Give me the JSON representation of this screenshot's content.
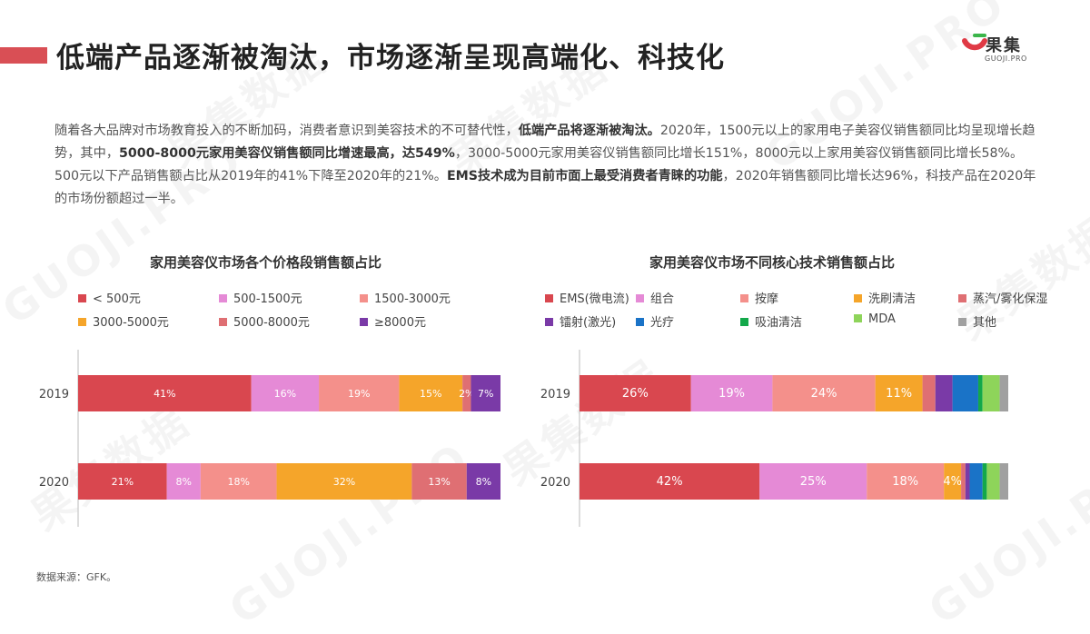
{
  "header": {
    "title": "低端产品逐渐被淘汰，市场逐渐呈现高端化、科技化",
    "logo_name": "果集",
    "logo_sub": "GUOJI.PRO"
  },
  "body_text": {
    "p1": "随着各大品牌对市场教育投入的不断加码，消费者意识到美容技术的不可替代性，",
    "p1b": "低端产品将逐渐被淘汰。",
    "p2": "2020年，1500元以上的家用电子美容仪销售额同比均呈现增长趋势，其中，",
    "p2b": "5000-8000元家用美容仪销售额同比增速最高，达549%",
    "p3": "，3000-5000元家用美容仪销售额同比增长151%，8000元以上家用美容仪销售额同比增长58%。500元以下产品销售额占比从2019年的41%下降至2020年的21%。",
    "p3b": "EMS技术成为目前市面上最受消费者青睐的功能",
    "p4": "，2020年销售额同比增长达96%，科技产品在2020年的市场份额超过一半。"
  },
  "source": "数据来源：GFK。",
  "watermark": "果集数据",
  "watermark_en": "GUOJI.PRO",
  "colors": {
    "accent": "#d94f55"
  },
  "chart_data": [
    {
      "type": "bar",
      "orientation": "horizontal-stacked-100",
      "title": "家用美容仪市场各个价格段销售额占比",
      "categories": [
        "2019",
        "2020"
      ],
      "legend_position": "top",
      "series": [
        {
          "name": "< 500元",
          "color": "#d9474f",
          "values": [
            41,
            21
          ],
          "labels": [
            "41%",
            "21%"
          ]
        },
        {
          "name": "500-1500元",
          "color": "#e58ad6",
          "values": [
            16,
            8
          ],
          "labels": [
            "16%",
            "8%"
          ]
        },
        {
          "name": "1500-3000元",
          "color": "#f4908b",
          "values": [
            19,
            18
          ],
          "labels": [
            "19%",
            "18%"
          ]
        },
        {
          "name": "3000-5000元",
          "color": "#f5a52a",
          "values": [
            15,
            32
          ],
          "labels": [
            "15%",
            "32%"
          ]
        },
        {
          "name": "5000-8000元",
          "color": "#df6f73",
          "values": [
            2,
            13
          ],
          "labels": [
            "2%",
            "13%"
          ]
        },
        {
          "name": "≥8000元",
          "color": "#7a3aa7",
          "values": [
            7,
            8
          ],
          "labels": [
            "7%",
            "8%"
          ]
        }
      ]
    },
    {
      "type": "bar",
      "orientation": "horizontal-stacked-100",
      "title": "家用美容仪市场不同核心技术销售额占比",
      "categories": [
        "2019",
        "2020"
      ],
      "legend_position": "top",
      "series": [
        {
          "name": "EMS(微电流)",
          "color": "#d9474f",
          "values": [
            26,
            42
          ],
          "labels": [
            "26%",
            "42%"
          ]
        },
        {
          "name": "组合",
          "color": "#e58ad6",
          "values": [
            19,
            25
          ],
          "labels": [
            "19%",
            "25%"
          ]
        },
        {
          "name": "按摩",
          "color": "#f4908b",
          "values": [
            24,
            18
          ],
          "labels": [
            "24%",
            "18%"
          ]
        },
        {
          "name": "洗刷清洁",
          "color": "#f5a52a",
          "values": [
            11,
            4
          ],
          "labels": [
            "11%",
            "4%"
          ]
        },
        {
          "name": "蒸汽/雾化保湿",
          "color": "#df6f73",
          "values": [
            3,
            1
          ],
          "labels": [
            "",
            ""
          ]
        },
        {
          "name": "镭射(激光)",
          "color": "#7a3aa7",
          "values": [
            4,
            1
          ],
          "labels": [
            "",
            ""
          ]
        },
        {
          "name": "光疗",
          "color": "#1a73c7",
          "values": [
            6,
            3
          ],
          "labels": [
            "",
            ""
          ]
        },
        {
          "name": "吸油清洁",
          "color": "#13a84a",
          "values": [
            1,
            1
          ],
          "labels": [
            "",
            ""
          ]
        },
        {
          "name": "MDA",
          "color": "#8ed45a",
          "values": [
            4,
            3
          ],
          "labels": [
            "",
            ""
          ]
        },
        {
          "name": "其他",
          "color": "#a0a0a0",
          "values": [
            2,
            2
          ],
          "labels": [
            "",
            ""
          ]
        }
      ]
    }
  ]
}
